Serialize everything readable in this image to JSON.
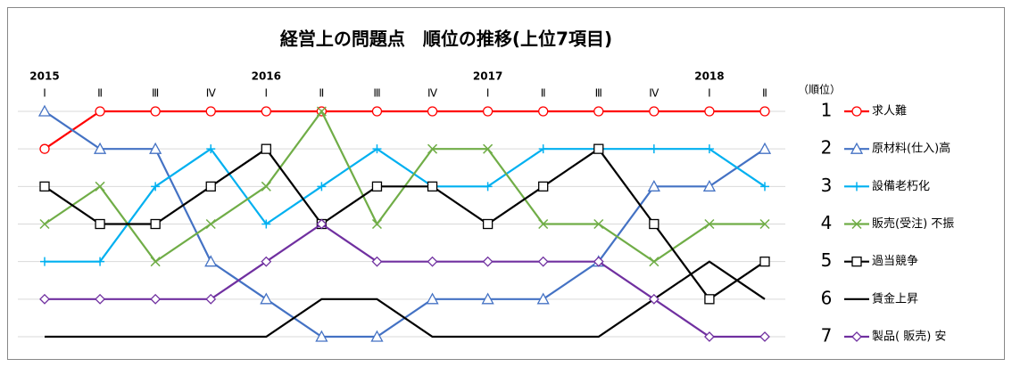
{
  "chart_data": {
    "type": "line",
    "title": "経営上の問題点　順位の推移(上位7項目)",
    "categories": [
      "Ⅰ",
      "Ⅱ",
      "Ⅲ",
      "Ⅳ",
      "Ⅰ",
      "Ⅱ",
      "Ⅲ",
      "Ⅳ",
      "Ⅰ",
      "Ⅱ",
      "Ⅲ",
      "Ⅳ",
      "Ⅰ",
      "Ⅱ"
    ],
    "year_labels": [
      "2015",
      null,
      null,
      null,
      "2016",
      null,
      null,
      null,
      "2017",
      null,
      null,
      null,
      "2018",
      null
    ],
    "y_label": "（順位）",
    "ylim": [
      7,
      1
    ],
    "yticks": [
      1,
      2,
      3,
      4,
      5,
      6,
      7
    ],
    "grid": true,
    "series": [
      {
        "name": "求人難",
        "color": "#ff0000",
        "marker": "circle",
        "values": [
          2,
          1,
          1,
          1,
          1,
          1,
          1,
          1,
          1,
          1,
          1,
          1,
          1,
          1
        ]
      },
      {
        "name": "原材料(仕入)高",
        "color": "#4472c4",
        "marker": "triangle",
        "values": [
          1,
          2,
          2,
          5,
          6,
          7,
          7,
          6,
          6,
          6,
          5,
          3,
          3,
          2
        ]
      },
      {
        "name": "設備老朽化",
        "color": "#00b0f0",
        "marker": "plus",
        "values": [
          5,
          5,
          3,
          2,
          4,
          3,
          2,
          3,
          3,
          2,
          2,
          2,
          2,
          3
        ]
      },
      {
        "name": "販売(受注) 不振",
        "color": "#70ad47",
        "marker": "cross",
        "values": [
          4,
          3,
          5,
          4,
          3,
          1,
          4,
          2,
          2,
          4,
          4,
          5,
          4,
          4
        ]
      },
      {
        "name": "過当競争",
        "color": "#000000",
        "marker": "square",
        "values": [
          3,
          4,
          4,
          3,
          2,
          4,
          3,
          3,
          4,
          3,
          2,
          4,
          6,
          5
        ]
      },
      {
        "name": "賃金上昇",
        "color": "#000000",
        "marker": "none",
        "values": [
          7,
          7,
          7,
          7,
          7,
          6,
          6,
          7,
          7,
          7,
          7,
          6,
          5,
          6
        ]
      },
      {
        "name": "製品( 販売) 安",
        "color": "#7030a0",
        "marker": "diamond",
        "values": [
          6,
          6,
          6,
          6,
          5,
          4,
          5,
          5,
          5,
          5,
          5,
          6,
          7,
          7
        ]
      }
    ]
  }
}
